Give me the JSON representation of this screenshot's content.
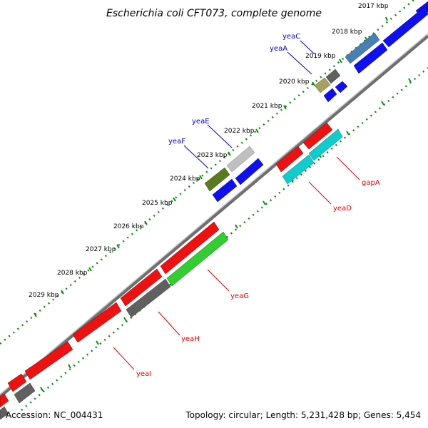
{
  "title": "Escherichia coli CFT073, complete genome",
  "footer": {
    "accession": "Accession: NC_004431",
    "summary": "Topology: circular; Length: 5,231,428 bp; Genes: 5,454"
  },
  "colors": {
    "forward_strand": "#0000ee",
    "reverse_strand": "#ff0000",
    "backbone": "#8a8a8a",
    "tick_dots": "#118811",
    "label_forward": "#0000cc",
    "label_reverse": "#e00000"
  },
  "ruler": [
    {
      "label": "2017 kbp"
    },
    {
      "label": "2018 kbp"
    },
    {
      "label": "2019 kbp"
    },
    {
      "label": "2020 kbp"
    },
    {
      "label": "2021 kbp"
    },
    {
      "label": "2022 kbp"
    },
    {
      "label": "2023 kbp"
    },
    {
      "label": "2024 kbp"
    },
    {
      "label": "2025 kbp"
    },
    {
      "label": "2026 kbp"
    },
    {
      "label": "2027 kbp"
    },
    {
      "label": "2028 kbp"
    },
    {
      "label": "2029 kbp"
    }
  ],
  "gene_labels": {
    "yeaC": "yeaC",
    "yeaA": "yeaA",
    "yeaE": "yeaE",
    "yeaF": "yeaF",
    "gapA": "gapA",
    "yeaD": "yeaD",
    "yeaG": "yeaG",
    "yeaH": "yeaH",
    "yeaI": "yeaI"
  }
}
